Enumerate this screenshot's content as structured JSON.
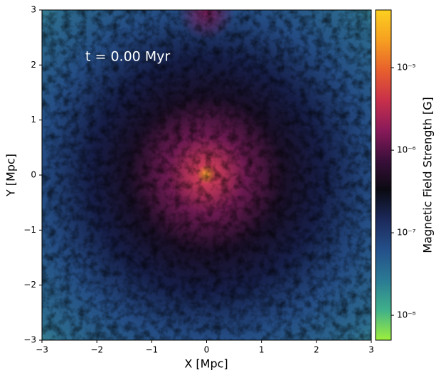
{
  "chart_data": {
    "type": "heatmap",
    "annotation": "t = 0.00 Myr",
    "x_label": "X [Mpc]",
    "y_label": "Y [Mpc]",
    "xlim": [
      -3,
      3
    ],
    "ylim": [
      -3,
      3
    ],
    "xticks": [
      {
        "value": -3,
        "label": "−3"
      },
      {
        "value": -2,
        "label": "−2"
      },
      {
        "value": -1,
        "label": "−1"
      },
      0,
      1,
      2,
      3
    ],
    "yticks": [
      {
        "value": -3,
        "label": "−3"
      },
      {
        "value": -2,
        "label": "−2"
      },
      {
        "value": -1,
        "label": "−1"
      },
      0,
      1,
      2,
      3
    ],
    "colorbar": {
      "label": "Magnetic Field Strength [G]",
      "scale": "log",
      "clim": [
        5e-09,
        5e-05
      ],
      "ticks": [
        {
          "value": 1e-08,
          "label": "10⁻⁸"
        },
        {
          "value": 1e-07,
          "label": "10⁻⁷"
        },
        {
          "value": 1e-06,
          "label": "10⁻⁶"
        },
        {
          "value": 1e-05,
          "label": "10⁻⁵"
        }
      ],
      "colormap": [
        "#9ef03c",
        "#3fb08a",
        "#2a7a94",
        "#24508a",
        "#1c2a5c",
        "#0a0a12",
        "#3a0f3a",
        "#8a1a5a",
        "#c8304a",
        "#e8602c",
        "#f6a020",
        "#fcd020"
      ]
    }
  }
}
